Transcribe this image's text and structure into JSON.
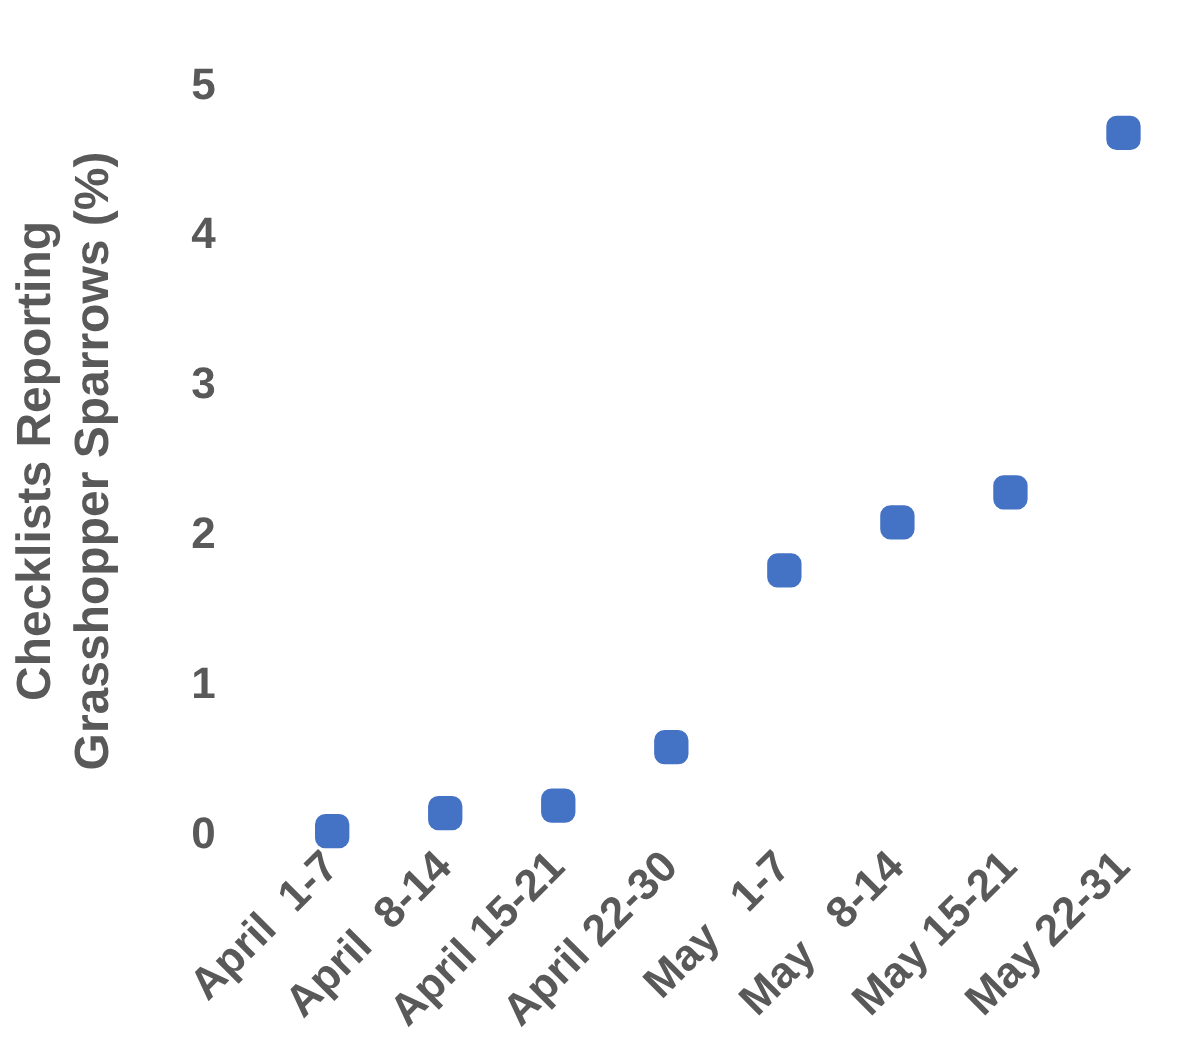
{
  "chart_data": {
    "type": "scatter",
    "ylabel": "Checklists Reporting Grasshopper Sparrows (%)",
    "categories": [
      "April  1-7",
      "April  8-14",
      "April 15-21",
      "April 22-30",
      "May   1-7",
      "May   8-14",
      "May 15-21",
      "May 22-31"
    ],
    "values": [
      0.03,
      0.15,
      0.2,
      0.59,
      1.77,
      2.09,
      2.29,
      4.69
    ],
    "color": "#4472c4",
    "marker": "square",
    "ylim": [
      0,
      5
    ],
    "yticks": [
      0,
      1,
      2,
      3,
      4,
      5
    ],
    "grid": false,
    "legend": false
  }
}
